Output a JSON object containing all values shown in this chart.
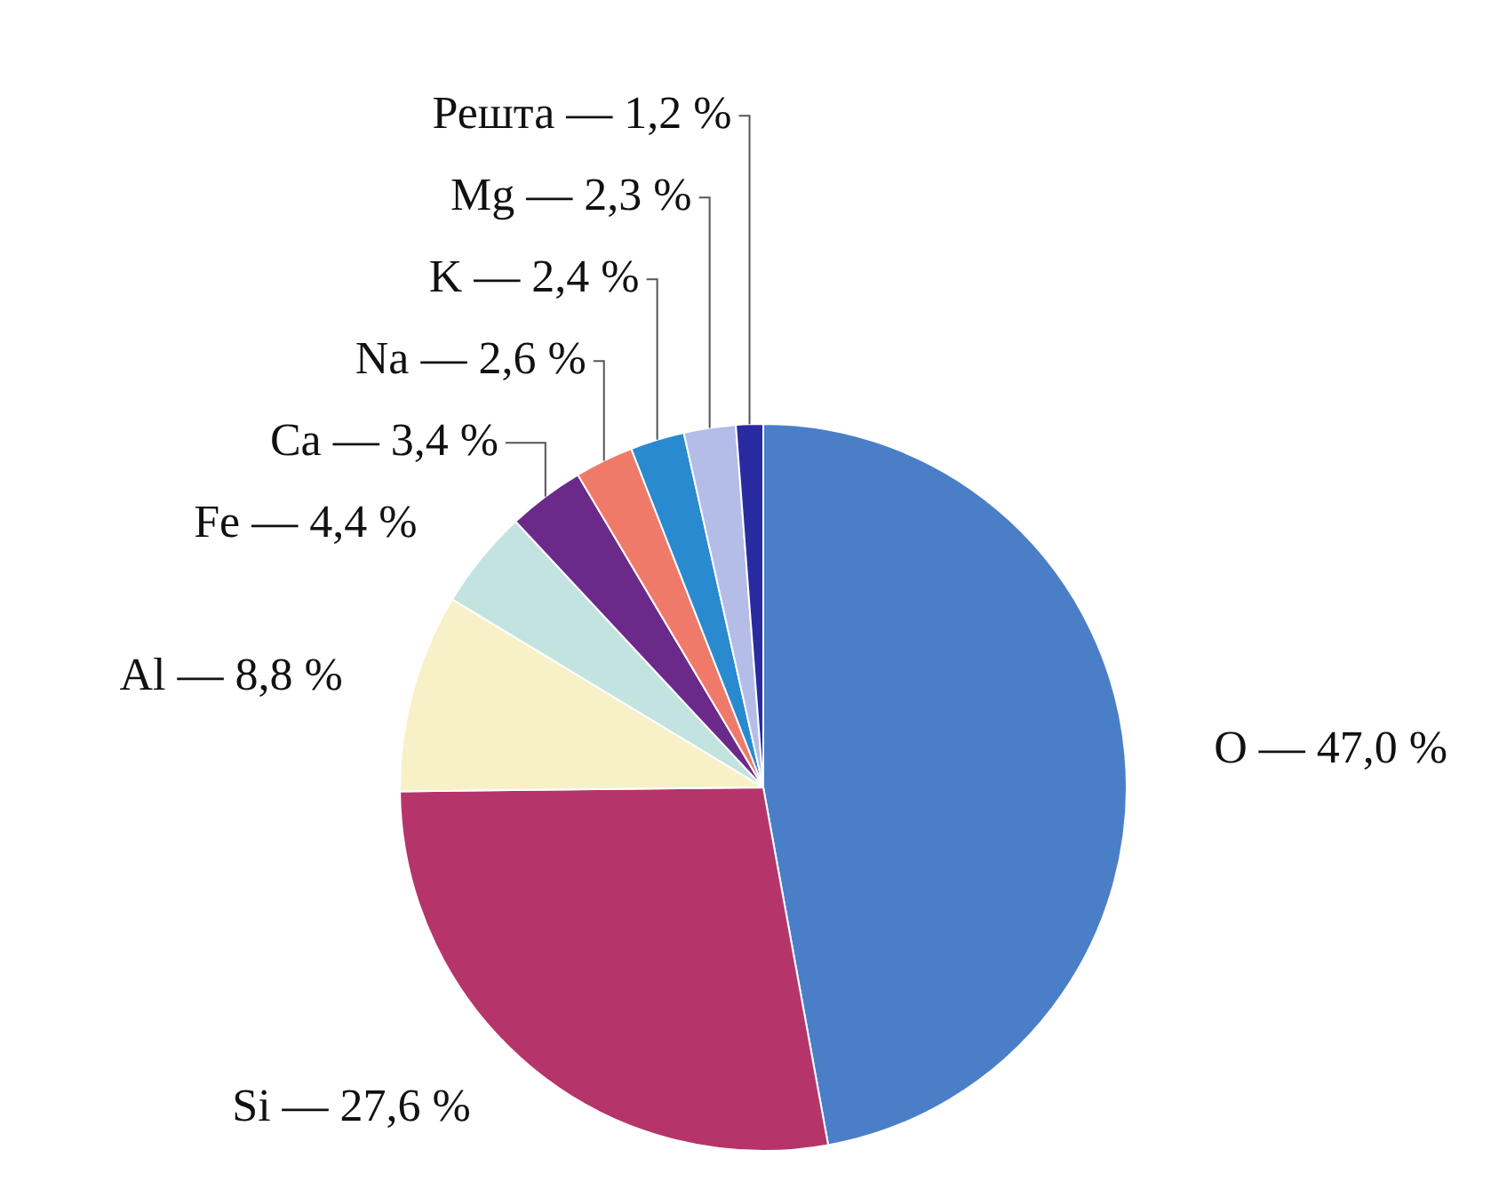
{
  "chart_data": {
    "type": "pie",
    "categories": [
      "O",
      "Si",
      "Al",
      "Fe",
      "Ca",
      "Na",
      "K",
      "Mg",
      "Решта"
    ],
    "values": [
      47.0,
      27.6,
      8.8,
      4.4,
      3.4,
      2.6,
      2.4,
      2.3,
      1.2
    ],
    "value_labels": [
      "— 47,0 %",
      "— 27,6 %",
      "— 8,8 %",
      "— 4,4 %",
      "— 3,4 %",
      "— 2,6 %",
      "— 2,4 %",
      "— 2,3 %",
      "— 1,2 %"
    ],
    "colors": [
      "#4a7fc8",
      "#b5356b",
      "#f8f1c8",
      "#c3e3e0",
      "#6b2a8a",
      "#f07a6a",
      "#2a8ad0",
      "#b4bce8",
      "#2a2aa0"
    ],
    "legend": false
  }
}
